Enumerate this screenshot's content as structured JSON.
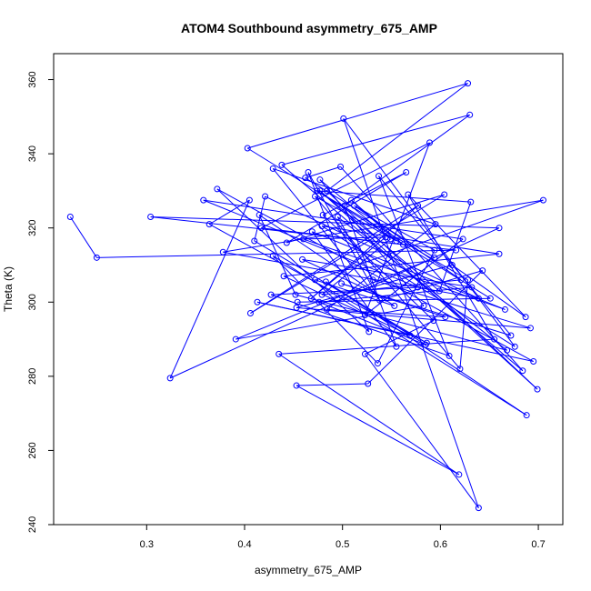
{
  "chart_data": {
    "type": "scatter",
    "title": "ATOM4 Southbound asymmetry_675_AMP",
    "xlabel": "asymmetry_675_AMP",
    "ylabel": "Theta (K)",
    "xlim": [
      0.205,
      0.725
    ],
    "ylim": [
      240,
      367
    ],
    "x_ticks": [
      "0.3",
      "0.4",
      "0.5",
      "0.6",
      "0.7"
    ],
    "y_ticks": [
      "240",
      "260",
      "280",
      "300",
      "320",
      "340",
      "360"
    ],
    "series": [
      {
        "color": "#0000ff",
        "marker": "open-circle",
        "connected": true,
        "x": [
          0.222,
          0.249,
          0.616,
          0.304,
          0.66,
          0.324,
          0.405,
          0.364,
          0.586,
          0.41,
          0.421,
          0.639,
          0.378,
          0.705,
          0.472,
          0.553,
          0.415,
          0.452,
          0.668,
          0.495,
          0.531,
          0.692,
          0.453,
          0.612,
          0.687,
          0.567,
          0.655,
          0.435,
          0.619,
          0.453,
          0.526,
          0.643,
          0.545,
          0.459,
          0.632,
          0.476,
          0.585,
          0.483,
          0.688,
          0.429,
          0.536,
          0.594,
          0.512,
          0.621,
          0.479,
          0.549,
          0.477,
          0.583,
          0.391,
          0.594,
          0.462,
          0.498,
          0.684,
          0.438,
          0.63,
          0.502,
          0.555,
          0.469,
          0.666,
          0.46,
          0.544,
          0.468,
          0.577,
          0.406,
          0.604,
          0.443,
          0.565,
          0.48,
          0.593,
          0.523,
          0.639,
          0.501,
          0.676,
          0.479,
          0.66,
          0.44,
          0.569,
          0.413,
          0.695,
          0.372,
          0.527,
          0.465,
          0.538,
          0.429,
          0.595,
          0.484,
          0.605,
          0.499,
          0.672,
          0.537,
          0.609,
          0.427,
          0.577,
          0.358,
          0.623,
          0.523,
          0.589,
          0.417,
          0.562,
          0.509,
          0.555,
          0.472,
          0.62,
          0.628,
          0.474,
          0.631,
          0.599,
          0.477,
          0.699,
          0.484,
          0.628,
          0.403,
          0.651,
          0.454
        ],
        "y": [
          323,
          312,
          314,
          323,
          320,
          279.5,
          327.5,
          321,
          289,
          316.5,
          328.5,
          301,
          313.5,
          327.5,
          306,
          299,
          323.5,
          302,
          287,
          323,
          306,
          293,
          298.5,
          310,
          296,
          329,
          290,
          286,
          253.5,
          277.5,
          278,
          308.5,
          301,
          311.5,
          304,
          300,
          288.5,
          305.5,
          269.5,
          312.5,
          283.5,
          314,
          326,
          306,
          302,
          317,
          333,
          299,
          290,
          312,
          333.5,
          336.5,
          281.5,
          337,
          350.5,
          326,
          288,
          319,
          298,
          317,
          317.5,
          301,
          326,
          297,
          329,
          316,
          335,
          323.5,
          295,
          286,
          244.5,
          349.5,
          288,
          320.5,
          313,
          307,
          291,
          300,
          284,
          330.5,
          292,
          335,
          300.5,
          336,
          321,
          298,
          296,
          305,
          291,
          334,
          285.5,
          302,
          304,
          327.5,
          317,
          296.5,
          343,
          320,
          315.5,
          327.5,
          316.5,
          328.5,
          282,
          306,
          330,
          327,
          303,
          330,
          276.5,
          330,
          359,
          341.5,
          301,
          300
        ]
      }
    ]
  }
}
